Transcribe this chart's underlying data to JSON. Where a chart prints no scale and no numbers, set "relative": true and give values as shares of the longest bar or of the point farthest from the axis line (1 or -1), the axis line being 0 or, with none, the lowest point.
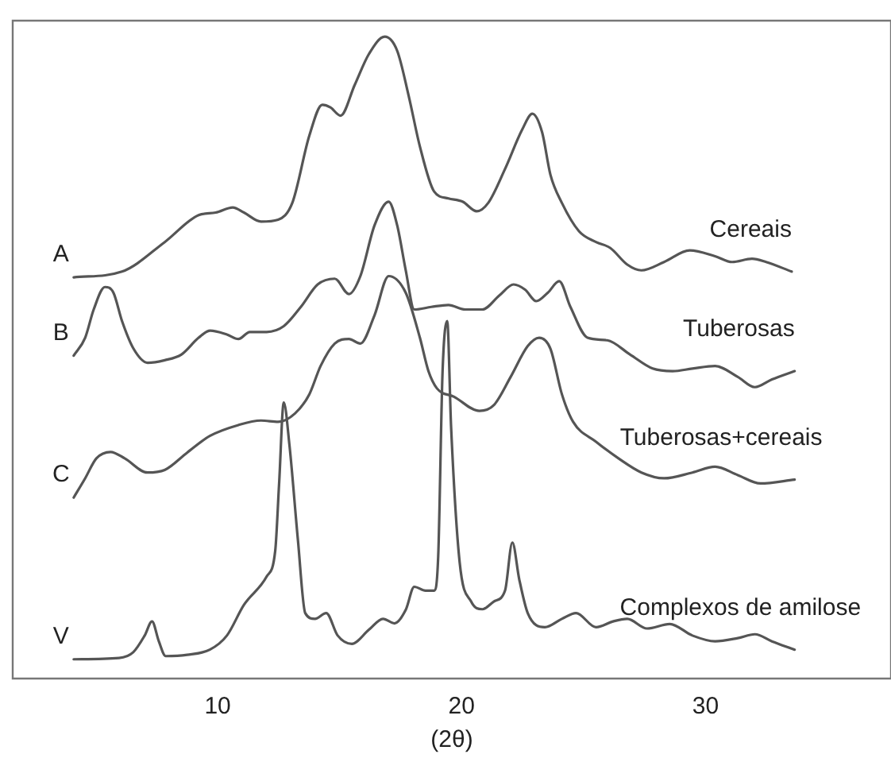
{
  "chart_data": {
    "type": "line",
    "relative": true,
    "xlabel": "(2θ)",
    "xlim": [
      1.6,
      37.6
    ],
    "xticks": [
      10,
      20,
      30
    ],
    "grid": false,
    "legend": false,
    "marker": "none",
    "line_style": "solid",
    "series": [
      {
        "name": "Cereais",
        "color": "#555555",
        "x": [
          4.1,
          6.08,
          7.83,
          9.22,
          9.92,
          10.62,
          11.08,
          11.78,
          12.48,
          13.06,
          13.76,
          14.29,
          14.62,
          15.04,
          15.62,
          16.2,
          16.85,
          17.36,
          17.83,
          18.29,
          18.87,
          19.46,
          20.04,
          20.62,
          21.09,
          21.78,
          22.48,
          22.9,
          23.3,
          23.64,
          24.11,
          24.81,
          25.51,
          26.09,
          26.79,
          27.37,
          28.3,
          29.35,
          30.39,
          31.09,
          31.9,
          32.48,
          33.53
        ],
        "values": [
          0.625,
          0.634,
          0.68,
          0.722,
          0.726,
          0.734,
          0.726,
          0.712,
          0.715,
          0.741,
          0.846,
          0.894,
          0.89,
          0.877,
          0.925,
          0.973,
          1,
          0.978,
          0.908,
          0.829,
          0.759,
          0.748,
          0.743,
          0.728,
          0.741,
          0.794,
          0.855,
          0.88,
          0.851,
          0.785,
          0.741,
          0.697,
          0.68,
          0.671,
          0.645,
          0.636,
          0.649,
          0.667,
          0.658,
          0.649,
          0.654,
          0.649,
          0.634
        ]
      },
      {
        "name": "Tuberosas",
        "color": "#555555",
        "x": [
          4.1,
          4.57,
          4.92,
          5.38,
          5.73,
          6.08,
          6.55,
          7.13,
          7.83,
          8.52,
          9.22,
          9.69,
          10.38,
          10.85,
          11.32,
          12.01,
          12.71,
          13.41,
          14.1,
          14.8,
          15.38,
          15.85,
          16.43,
          17.01,
          17.36,
          17.71,
          18.06,
          18.76,
          19.46,
          20.15,
          20.85,
          21.55,
          22.13,
          22.6,
          23.06,
          23.53,
          24.0,
          24.46,
          25.16,
          25.97,
          26.9,
          27.83,
          28.65,
          29.46,
          30.39,
          31.32,
          32.02,
          32.72,
          33.65
        ],
        "values": [
          0.503,
          0.531,
          0.575,
          0.61,
          0.601,
          0.557,
          0.514,
          0.492,
          0.496,
          0.505,
          0.531,
          0.542,
          0.536,
          0.529,
          0.54,
          0.54,
          0.549,
          0.579,
          0.614,
          0.623,
          0.599,
          0.627,
          0.706,
          0.743,
          0.706,
          0.636,
          0.575,
          0.579,
          0.582,
          0.575,
          0.575,
          0.597,
          0.614,
          0.606,
          0.588,
          0.601,
          0.619,
          0.579,
          0.531,
          0.527,
          0.505,
          0.483,
          0.479,
          0.483,
          0.487,
          0.47,
          0.454,
          0.466,
          0.479
        ]
      },
      {
        "name": "Tuberosas+cereais",
        "color": "#555555",
        "x": [
          4.1,
          4.57,
          5.03,
          5.61,
          6.19,
          7.12,
          7.83,
          8.75,
          9.68,
          10.85,
          11.78,
          12.48,
          13.17,
          13.76,
          14.22,
          14.8,
          15.38,
          15.85,
          16.43,
          17.01,
          17.71,
          18.29,
          18.64,
          18.99,
          19.69,
          20.73,
          21.32,
          22.01,
          22.71,
          23.18,
          23.64,
          24.11,
          24.57,
          25.51,
          26.43,
          27.37,
          28.3,
          29.46,
          30.39,
          31.32,
          32.25,
          33.65
        ],
        "values": [
          0.282,
          0.312,
          0.343,
          0.353,
          0.343,
          0.321,
          0.325,
          0.352,
          0.378,
          0.395,
          0.402,
          0.4,
          0.413,
          0.443,
          0.487,
          0.522,
          0.529,
          0.522,
          0.566,
          0.627,
          0.601,
          0.531,
          0.479,
          0.452,
          0.439,
          0.417,
          0.426,
          0.47,
          0.518,
          0.531,
          0.514,
          0.443,
          0.4,
          0.369,
          0.343,
          0.321,
          0.312,
          0.321,
          0.33,
          0.317,
          0.304,
          0.31
        ]
      },
      {
        "name": "Complexos de amilose",
        "color": "#555555",
        "x": [
          4.1,
          5.96,
          6.54,
          7.01,
          7.31,
          7.59,
          7.87,
          8.75,
          9.68,
          10.38,
          11.08,
          12.01,
          12.36,
          12.52,
          12.71,
          12.94,
          13.29,
          13.59,
          13.99,
          14.45,
          14.92,
          15.5,
          16.2,
          16.78,
          17.25,
          17.71,
          18.06,
          18.52,
          18.87,
          19.04,
          19.22,
          19.41,
          19.57,
          19.92,
          20.39,
          20.85,
          21.32,
          21.78,
          22.08,
          22.36,
          22.71,
          23.41,
          24.11,
          24.69,
          25.51,
          26.2,
          26.79,
          27.6,
          28.53,
          29.46,
          30.39,
          31.32,
          32.02,
          32.72,
          33.65
        ],
        "values": [
          0.03,
          0.032,
          0.041,
          0.067,
          0.089,
          0.058,
          0.035,
          0.037,
          0.045,
          0.067,
          0.115,
          0.159,
          0.199,
          0.304,
          0.43,
          0.365,
          0.216,
          0.102,
          0.093,
          0.102,
          0.067,
          0.054,
          0.076,
          0.093,
          0.086,
          0.107,
          0.143,
          0.137,
          0.137,
          0.19,
          0.479,
          0.557,
          0.391,
          0.181,
          0.12,
          0.108,
          0.12,
          0.137,
          0.212,
          0.155,
          0.102,
          0.08,
          0.093,
          0.102,
          0.08,
          0.089,
          0.093,
          0.078,
          0.085,
          0.067,
          0.058,
          0.063,
          0.069,
          0.058,
          0.045
        ]
      }
    ],
    "annotations": [
      "A",
      "B",
      "C",
      "V"
    ]
  }
}
